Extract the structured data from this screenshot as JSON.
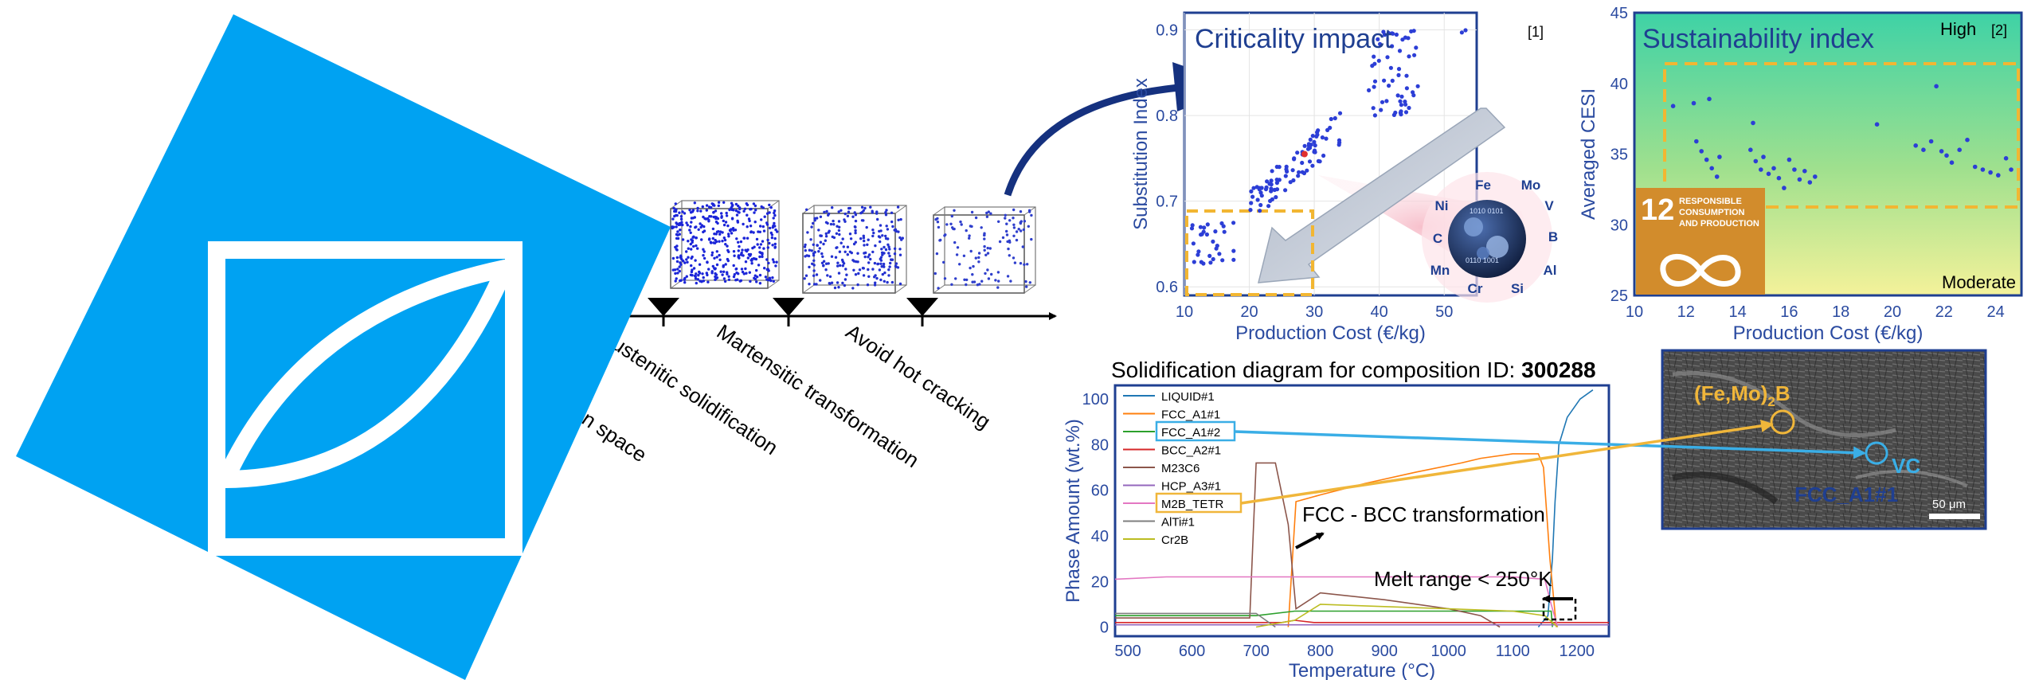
{
  "colors": {
    "logo_blue": "#00a2f2",
    "navy": "#1f3f91",
    "axis_blue": "#2a4aa0",
    "point_blue": "#2c3ed6",
    "arrow_navy": "#15317f",
    "dash_yellow": "#f2b632",
    "sdg_orange": "#d28c2c",
    "vc_blue": "#3aaee6",
    "fe_mo_yellow": "#f0b63a"
  },
  "pipeline": {
    "steps": [
      "Austenitic solidification",
      "Martensitic transformation",
      "Avoid hot cracking"
    ],
    "partial_step": "tion space"
  },
  "criticality": {
    "title": "Criticality impact",
    "ref": "[1]",
    "element_wheel": [
      "Fe",
      "Mo",
      "V",
      "B",
      "Al",
      "Si",
      "Cr",
      "Mn",
      "C",
      "Ni"
    ]
  },
  "sustainability": {
    "title": "Sustainability index",
    "high_label": "High",
    "moderate_label": "Moderate",
    "ref": "[2]",
    "sdg_number": "12",
    "sdg_lines": [
      "RESPONSIBLE",
      "CONSUMPTION",
      "AND PRODUCTION"
    ],
    "sdg_icon": "infinity-icon"
  },
  "solidification": {
    "title_prefix": "Solidification diagram for composition ID: ",
    "composition_id": "300288",
    "annotation_fcc_bcc": "FCC - BCC transformation",
    "annotation_melt": "Melt range < 250°K"
  },
  "micrograph": {
    "label_boride": "(Fe,Mo)",
    "label_boride_sub": "2",
    "label_boride_end": "B",
    "label_vc": "VC",
    "label_fcc": "FCC_A1#1",
    "scale_bar": "50 μm"
  },
  "chart_data": [
    {
      "type": "scatter",
      "id": "criticality",
      "title": "Criticality impact",
      "xlabel": "Production Cost (€/kg)",
      "ylabel": "Substitution Index",
      "xlim": [
        10,
        55
      ],
      "ylim": [
        0.59,
        0.92
      ],
      "xticks": [
        10,
        20,
        30,
        40,
        50
      ],
      "yticks": [
        0.6,
        0.7,
        0.8,
        0.9
      ],
      "clusters": [
        {
          "name": "low",
          "x_range": [
            11,
            18
          ],
          "y_range": [
            0.625,
            0.675
          ],
          "count": 30
        },
        {
          "name": "mid",
          "x_range": [
            20,
            34
          ],
          "y_range": [
            0.695,
            0.785
          ],
          "count": 85
        },
        {
          "name": "high",
          "x_range": [
            38,
            46
          ],
          "y_range": [
            0.8,
            0.9
          ],
          "count": 55
        },
        {
          "name": "outlier",
          "x_range": [
            52,
            53.5
          ],
          "y_range": [
            0.895,
            0.9
          ],
          "count": 2
        }
      ]
    },
    {
      "type": "scatter",
      "id": "sustainability",
      "title": "Sustainability index",
      "xlabel": "Production Cost (€/kg)",
      "ylabel": "Averaged CESI",
      "xlim": [
        10,
        25
      ],
      "ylim": [
        25,
        45
      ],
      "xticks": [
        10,
        12,
        14,
        16,
        18,
        20,
        22,
        24
      ],
      "yticks": [
        25,
        30,
        35,
        40,
        45
      ],
      "points": [
        [
          11.5,
          38.4
        ],
        [
          12.3,
          38.6
        ],
        [
          12.9,
          38.9
        ],
        [
          12.4,
          35.9
        ],
        [
          12.6,
          35.2
        ],
        [
          12.8,
          34.6
        ],
        [
          13.0,
          34.0
        ],
        [
          13.2,
          33.4
        ],
        [
          13.3,
          34.8
        ],
        [
          14.6,
          37.2
        ],
        [
          14.5,
          35.3
        ],
        [
          14.7,
          34.5
        ],
        [
          14.9,
          33.9
        ],
        [
          15.0,
          34.8
        ],
        [
          15.2,
          33.6
        ],
        [
          15.4,
          34.0
        ],
        [
          15.6,
          33.3
        ],
        [
          15.8,
          32.6
        ],
        [
          16.0,
          34.6
        ],
        [
          16.2,
          33.9
        ],
        [
          16.4,
          33.2
        ],
        [
          16.6,
          33.8
        ],
        [
          16.8,
          33.0
        ],
        [
          17.0,
          33.4
        ],
        [
          19.4,
          37.1
        ],
        [
          20.9,
          35.6
        ],
        [
          21.2,
          35.3
        ],
        [
          21.5,
          35.9
        ],
        [
          21.7,
          39.8
        ],
        [
          21.9,
          35.2
        ],
        [
          22.1,
          34.9
        ],
        [
          22.3,
          34.4
        ],
        [
          22.6,
          35.3
        ],
        [
          22.9,
          36.0
        ],
        [
          23.2,
          34.1
        ],
        [
          23.5,
          33.9
        ],
        [
          23.8,
          33.7
        ],
        [
          24.1,
          33.5
        ],
        [
          24.4,
          34.7
        ],
        [
          24.6,
          33.9
        ]
      ]
    },
    {
      "type": "line",
      "id": "solidification",
      "title": "Solidification diagram for composition ID: 300288",
      "xlabel": "Temperature (°C)",
      "ylabel": "Phase Amount (wt.%)",
      "xlim": [
        480,
        1250
      ],
      "ylim": [
        -4,
        106
      ],
      "xticks": [
        500,
        600,
        700,
        800,
        900,
        1000,
        1100,
        1200
      ],
      "yticks": [
        0,
        20,
        40,
        60,
        80,
        100
      ],
      "series": [
        {
          "name": "LIQUID#1",
          "color": "#1f77b4",
          "points": [
            [
              1140,
              0
            ],
            [
              1155,
              5
            ],
            [
              1162,
              30
            ],
            [
              1166,
              55
            ],
            [
              1172,
              80
            ],
            [
              1185,
              92
            ],
            [
              1205,
              100
            ],
            [
              1225,
              104
            ]
          ]
        },
        {
          "name": "FCC_A1#1",
          "color": "#ff7f0e",
          "points": [
            [
              750,
              0
            ],
            [
              762,
              55
            ],
            [
              800,
              58
            ],
            [
              870,
              63
            ],
            [
              950,
              68
            ],
            [
              1020,
              72
            ],
            [
              1050,
              74
            ],
            [
              1100,
              76
            ],
            [
              1140,
              76
            ],
            [
              1148,
              70
            ],
            [
              1158,
              30
            ],
            [
              1168,
              0
            ]
          ]
        },
        {
          "name": "FCC_A1#2",
          "color": "#2ca02c",
          "points": [
            [
              480,
              5
            ],
            [
              700,
              5
            ],
            [
              760,
              7
            ],
            [
              900,
              7
            ],
            [
              1000,
              7
            ],
            [
              1120,
              7
            ],
            [
              1160,
              7
            ],
            [
              1162,
              0
            ]
          ]
        },
        {
          "name": "BCC_A2#1",
          "color": "#d62728",
          "points": [
            [
              480,
              2
            ],
            [
              700,
              2
            ],
            [
              740,
              2
            ],
            [
              760,
              3
            ],
            [
              790,
              2
            ],
            [
              1250,
              2
            ]
          ]
        },
        {
          "name": "M23C6",
          "color": "#8c564b",
          "points": [
            [
              480,
              4
            ],
            [
              690,
              4
            ],
            [
              700,
              72
            ],
            [
              730,
              72
            ],
            [
              750,
              45
            ],
            [
              762,
              8
            ],
            [
              800,
              15
            ],
            [
              900,
              12
            ],
            [
              1000,
              8
            ],
            [
              1050,
              5
            ],
            [
              1080,
              0
            ]
          ]
        },
        {
          "name": "HCP_A3#1",
          "color": "#9467bd",
          "points": [
            [
              480,
              1
            ],
            [
              1250,
              1
            ]
          ]
        },
        {
          "name": "M2B_TETR",
          "color": "#e377c2",
          "points": [
            [
              480,
              21
            ],
            [
              560,
              22
            ],
            [
              700,
              22
            ],
            [
              900,
              22
            ],
            [
              1100,
              22
            ],
            [
              1150,
              21
            ],
            [
              1160,
              10
            ],
            [
              1170,
              0
            ]
          ]
        },
        {
          "name": "AlTi#1",
          "color": "#7f7f7f",
          "points": [
            [
              480,
              6
            ],
            [
              700,
              6
            ],
            [
              730,
              0
            ]
          ]
        },
        {
          "name": "Cr2B",
          "color": "#bcbd22",
          "points": [
            [
              700,
              0
            ],
            [
              760,
              3
            ],
            [
              800,
              10
            ],
            [
              900,
              9
            ],
            [
              1000,
              8
            ],
            [
              1100,
              7
            ],
            [
              1150,
              5
            ],
            [
              1170,
              0
            ]
          ]
        }
      ]
    }
  ]
}
